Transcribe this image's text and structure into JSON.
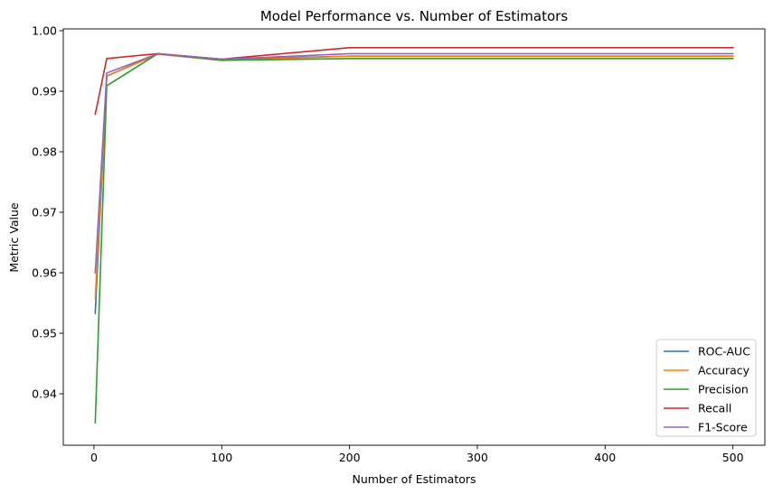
{
  "chart_data": {
    "type": "line",
    "title": "Model Performance vs. Number of Estimators",
    "xlabel": "Number of Estimators",
    "ylabel": "Metric Value",
    "x": [
      1,
      10,
      50,
      100,
      200,
      500
    ],
    "xlim": [
      -24,
      525
    ],
    "ylim": [
      0.9315,
      1.0003
    ],
    "xticks": [
      0,
      100,
      200,
      300,
      400,
      500
    ],
    "yticks": [
      0.94,
      0.95,
      0.96,
      0.97,
      0.98,
      0.99,
      1.0
    ],
    "ytick_labels": [
      "0.94",
      "0.95",
      "0.96",
      "0.97",
      "0.98",
      "0.99",
      "1.00"
    ],
    "grid": false,
    "legend_position": "bottom-right",
    "series": [
      {
        "name": "ROC-AUC",
        "color": "#1f77b4",
        "values": [
          0.9533,
          0.9925,
          0.9962,
          0.9953,
          0.9958,
          0.9958
        ]
      },
      {
        "name": "Accuracy",
        "color": "#ff7f0e",
        "values": [
          0.9557,
          0.9925,
          0.9961,
          0.9951,
          0.9958,
          0.9958
        ]
      },
      {
        "name": "Precision",
        "color": "#2ca02c",
        "values": [
          0.9352,
          0.9909,
          0.9962,
          0.9951,
          0.9954,
          0.9954
        ]
      },
      {
        "name": "Recall",
        "color": "#d62728",
        "values": [
          0.9862,
          0.9954,
          0.9962,
          0.9953,
          0.9972,
          0.9972
        ]
      },
      {
        "name": "F1-Score",
        "color": "#9467bd",
        "values": [
          0.96,
          0.993,
          0.9962,
          0.9953,
          0.9962,
          0.9962
        ]
      }
    ]
  }
}
